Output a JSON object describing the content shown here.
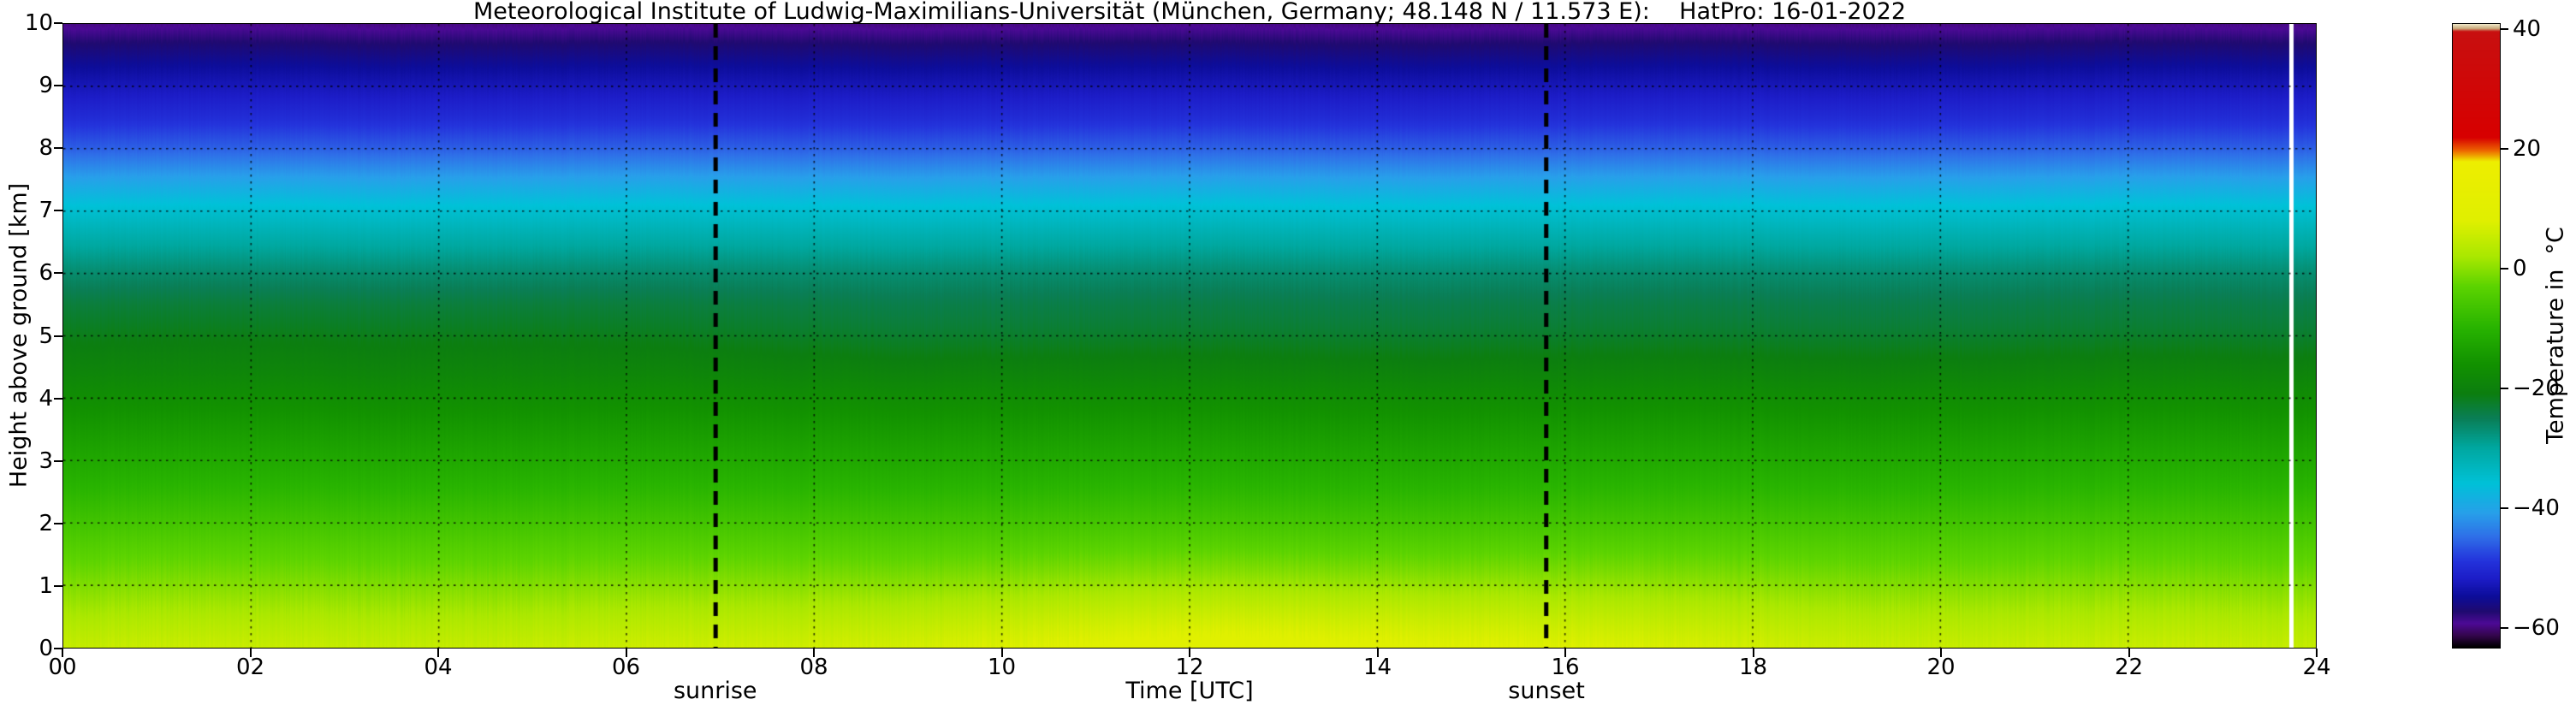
{
  "title": "Meteorological Institute of Ludwig-Maximilians-Universität (München, Germany; 48.148 N / 11.573 E):    HatPro: 16-01-2022",
  "axes": {
    "x_label": "Time [UTC]",
    "y_label": "Height above ground [km]",
    "x_ticks": [
      "00",
      "02",
      "04",
      "06",
      "08",
      "10",
      "12",
      "14",
      "16",
      "18",
      "20",
      "22",
      "24"
    ],
    "x_tick_values": [
      0,
      2,
      4,
      6,
      8,
      10,
      12,
      14,
      16,
      18,
      20,
      22,
      24
    ],
    "y_ticks": [
      "0",
      "1",
      "2",
      "3",
      "4",
      "5",
      "6",
      "7",
      "8",
      "9",
      "10"
    ],
    "y_tick_values": [
      0,
      1,
      2,
      3,
      4,
      5,
      6,
      7,
      8,
      9,
      10
    ]
  },
  "annotations": {
    "sunrise_label": "sunrise",
    "sunset_label": "sunset"
  },
  "colorbar": {
    "label": "Temperature in  °C",
    "ticks": [
      "40",
      "20",
      "0",
      "−20",
      "−40",
      "−60"
    ],
    "tick_values": [
      40,
      20,
      0,
      -20,
      -40,
      -60
    ]
  },
  "chart_data": {
    "type": "heatmap",
    "title": "Meteorological Institute of Ludwig-Maximilians-Universität (München, Germany; 48.148 N / 11.573 E):    HatPro: 16-01-2022",
    "xlabel": "Time [UTC]",
    "ylabel": "Height above ground [km]",
    "x_range_hours_utc": [
      0,
      24
    ],
    "y_range_km": [
      0,
      10
    ],
    "colorbar_range_c": [
      -63.5,
      41
    ],
    "grid": "dotted",
    "sunrise_utc": 6.95,
    "sunset_utc": 15.8,
    "data_gap_utc": [
      23.72,
      23.77
    ],
    "temperature_profile": {
      "height_km": [
        0,
        0.4,
        0.8,
        1.2,
        1.6,
        2,
        2.5,
        3,
        3.5,
        4,
        4.5,
        5,
        5.5,
        6,
        6.5,
        7,
        7.5,
        8,
        8.5,
        9,
        9.4,
        9.7,
        10
      ],
      "temp_c": [
        5,
        2.8,
        0.5,
        -1.8,
        -4,
        -6.5,
        -9.5,
        -12,
        -14.5,
        -17,
        -19.5,
        -21.5,
        -23.5,
        -26.5,
        -30.5,
        -35,
        -40.5,
        -46,
        -50,
        -53,
        -55.5,
        -57.5,
        -60
      ]
    },
    "time_variation": {
      "midday_warming_amplitude_c": 4,
      "warming_center_utc": 13,
      "warming_width_h": 3.3
    },
    "colormap_stops": [
      [
        41.0,
        "#efe7c6"
      ],
      [
        40.3,
        "#c9a87a"
      ],
      [
        39.8,
        "#c81010"
      ],
      [
        22.0,
        "#d80000"
      ],
      [
        19.8,
        "#ee6600"
      ],
      [
        18.0,
        "#eeee00"
      ],
      [
        8.0,
        "#e0f000"
      ],
      [
        2.0,
        "#aae800"
      ],
      [
        -3.0,
        "#5cd400"
      ],
      [
        -10.0,
        "#28b400"
      ],
      [
        -16.0,
        "#129200"
      ],
      [
        -21.0,
        "#0c7e10"
      ],
      [
        -25.0,
        "#0a7e55"
      ],
      [
        -30.0,
        "#00a8a0"
      ],
      [
        -36.0,
        "#00c2d8"
      ],
      [
        -41.0,
        "#28a0ea"
      ],
      [
        -45.0,
        "#2f6fe8"
      ],
      [
        -49.0,
        "#2434dc"
      ],
      [
        -52.0,
        "#1d1dc8"
      ],
      [
        -55.0,
        "#0d0d9a"
      ],
      [
        -57.5,
        "#200a70"
      ],
      [
        -59.5,
        "#4d0a96"
      ],
      [
        -61.5,
        "#35064e"
      ],
      [
        -63.5,
        "#000000"
      ]
    ]
  }
}
